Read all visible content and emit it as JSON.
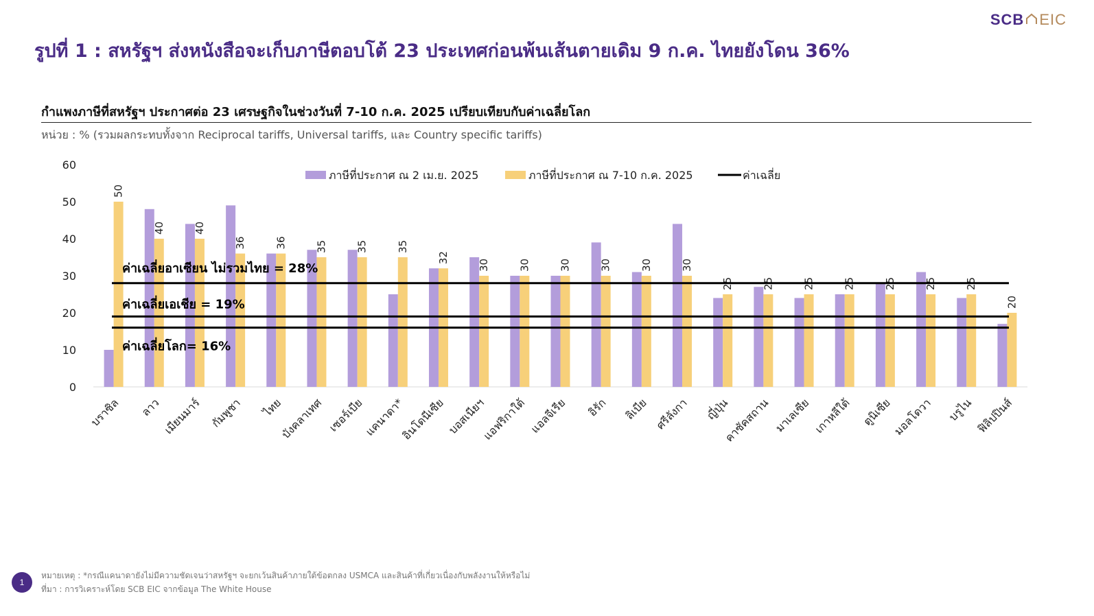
{
  "logo": {
    "part1": "SCB",
    "icon": "house-outline-icon",
    "part2": "EIC"
  },
  "main_title": "รูปที่ 1 : สหรัฐฯ ส่งหนังสือจะเก็บภาษีตอบโต้ 23 ประเทศก่อนพ้นเส้นตายเดิม 9 ก.ค. ไทยยังโดน 36%",
  "chart_title": "กำแพงภาษีที่สหรัฐฯ ประกาศต่อ 23 เศรษฐกิจในช่วงวันที่ 7-10 ก.ค. 2025 เปรียบเทียบกับค่าเฉลี่ยโลก",
  "unit_note": "หน่วย : % (รวมผลกระทบทั้งจาก Reciprocal tariffs, Universal tariffs, และ Country specific tariffs)",
  "footnote": {
    "note": "หมายเหตุ : *กรณีแคนาดายังไม่มีความชัดเจนว่าสหรัฐฯ จะยกเว้นสินค้าภายใต้ข้อตกลง USMCA และสินค้าที่เกี่ยวเนื่องกับพลังงานให้หรือไม่",
    "source": "ที่มา : การวิเคราะห์โดย SCB EIC จากข้อมูล The White House"
  },
  "page_number": "1",
  "colors": {
    "title": "#4a2c86",
    "apr": "#b39ddb",
    "jul": "#f7d07a",
    "avg": "#000000"
  },
  "chart_data": {
    "type": "bar",
    "categories": [
      "บราซิล",
      "ลาว",
      "เมียนมาร์",
      "กัมพูชา",
      "ไทย",
      "บังคลาเทศ",
      "เซอร์เบีย",
      "แคนาดา*",
      "อินโดนีเซีย",
      "บอสเนียฯ",
      "แอฟริกาใต้",
      "แอลจีเรีย",
      "อิรัก",
      "ลิเบีย",
      "ศรีลังกา",
      "ญี่ปุ่น",
      "คาซัคสถาน",
      "มาเลเซีย",
      "เกาหลีใต้",
      "ตูนิเซีย",
      "มอลโดวา",
      "บรูไน",
      "ฟิลิปปินส์"
    ],
    "series": [
      {
        "name": "ภาษีที่ประกาศ ณ 2 เม.ย. 2025",
        "values": [
          10,
          48,
          44,
          49,
          36,
          37,
          37,
          25,
          32,
          35,
          30,
          30,
          39,
          31,
          44,
          24,
          27,
          24,
          25,
          28,
          31,
          24,
          17
        ]
      },
      {
        "name": "ภาษีที่ประกาศ ณ 7-10 ก.ค. 2025",
        "values": [
          50,
          40,
          40,
          36,
          36,
          35,
          35,
          35,
          32,
          30,
          30,
          30,
          30,
          30,
          30,
          25,
          25,
          25,
          25,
          25,
          25,
          25,
          20
        ]
      }
    ],
    "reference_lines": [
      {
        "label": "ค่าเฉลี่ยอาเซียน ไม่รวมไทย = 28%",
        "value": 28
      },
      {
        "label": "ค่าเฉลี่ยเอเชีย = 19%",
        "value": 19
      },
      {
        "label": "ค่าเฉลี่ยโลก= 16%",
        "value": 16
      }
    ],
    "reference_legend": "ค่าเฉลี่ย",
    "yticks": [
      "0",
      "10",
      "20",
      "30",
      "40",
      "50",
      "60"
    ],
    "ylim": [
      0,
      60
    ],
    "grid": false,
    "legend_position": "top"
  }
}
